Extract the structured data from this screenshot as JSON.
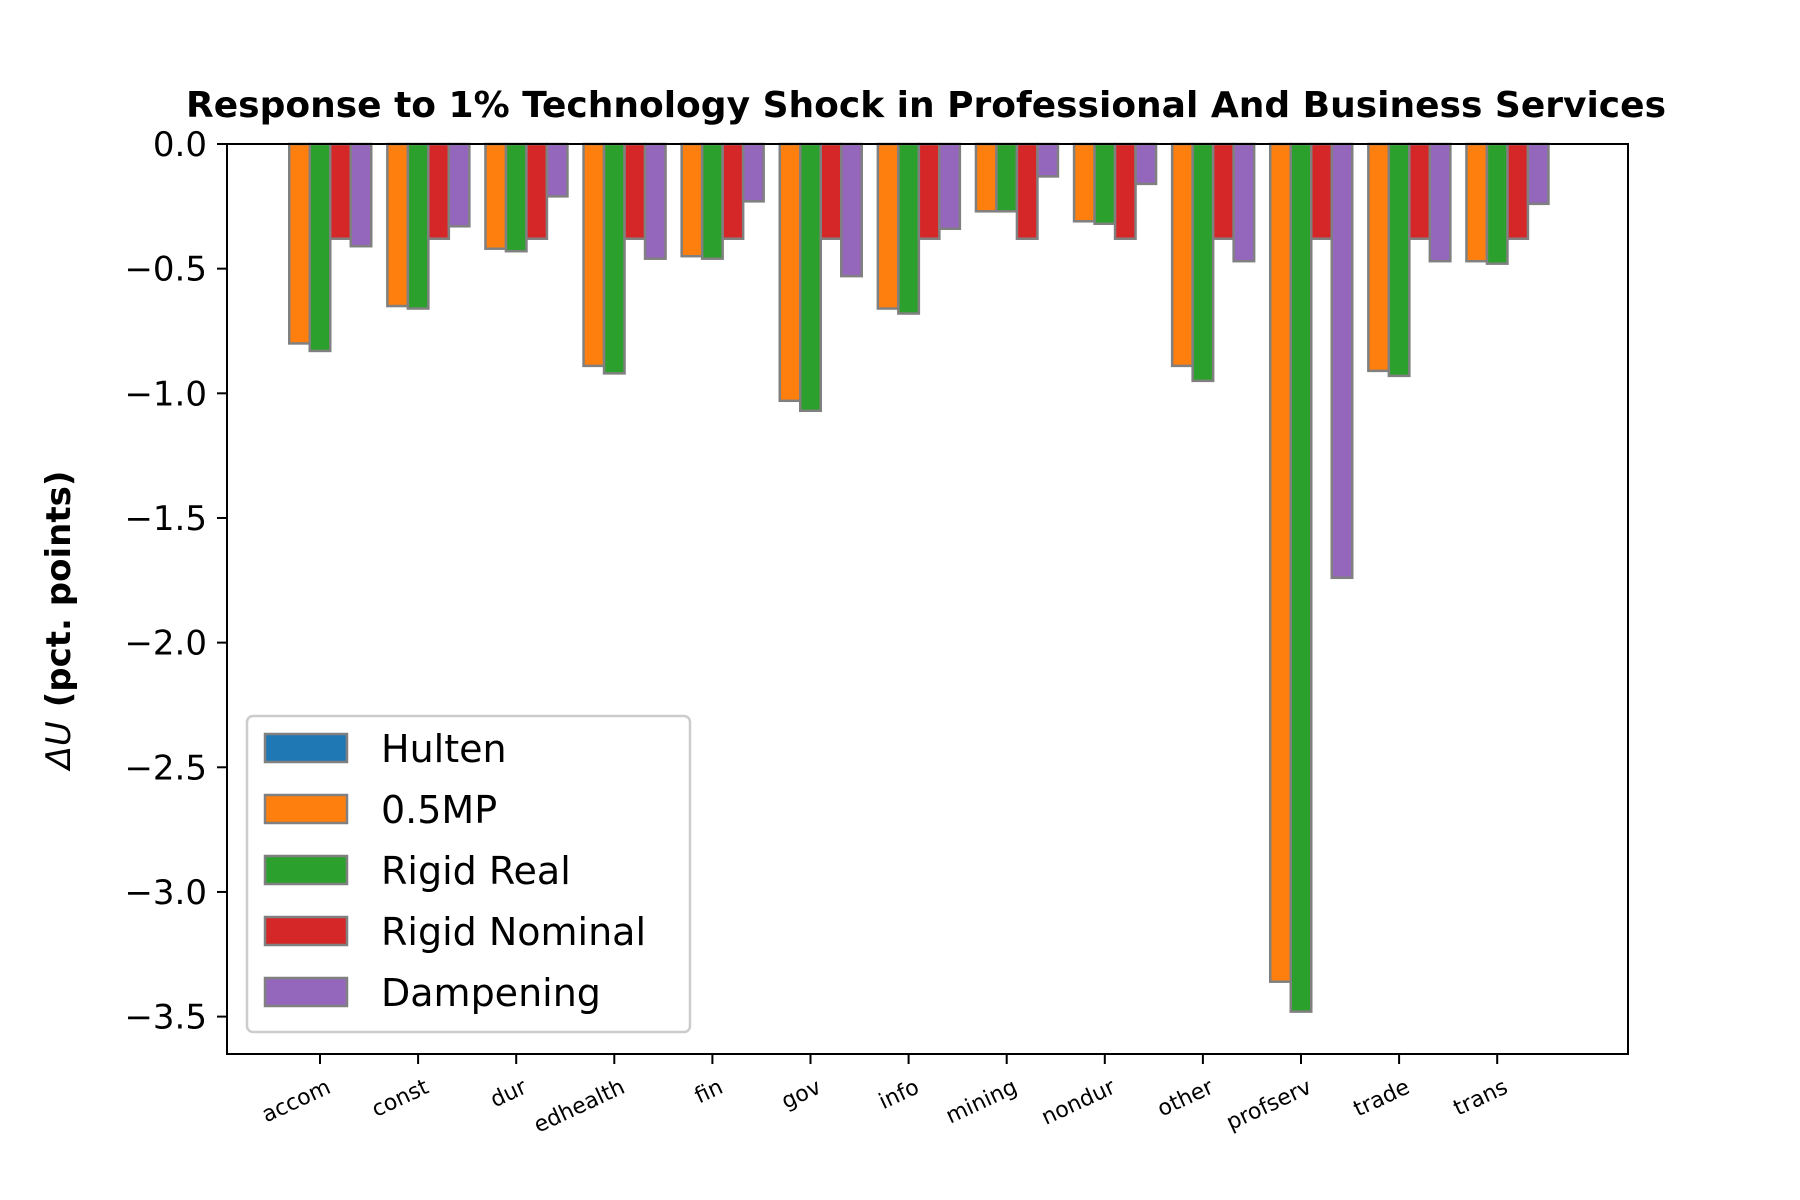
{
  "chart_data": {
    "type": "bar",
    "title": "Response to 1% Technology Shock in Professional And Business Services",
    "ylabel_symbol": "ΔU",
    "ylabel_text": "(pct. points)",
    "xlabel": "",
    "ylim": [
      -3.65,
      0.0
    ],
    "yticks": [
      0.0,
      -0.5,
      -1.0,
      -1.5,
      -2.0,
      -2.5,
      -3.0,
      -3.5
    ],
    "ytick_labels": [
      "0.0",
      "−0.5",
      "−1.0",
      "−1.5",
      "−2.0",
      "−2.5",
      "−3.0",
      "−3.5"
    ],
    "categories": [
      "accom",
      "const",
      "dur",
      "edhealth",
      "fin",
      "gov",
      "info",
      "mining",
      "nondur",
      "other",
      "profserv",
      "trade",
      "trans"
    ],
    "series": [
      {
        "name": "Hulten",
        "color": "#1f77b4",
        "values": [
          0,
          0,
          0,
          0,
          0,
          0,
          0,
          0,
          0,
          0,
          0,
          0,
          0
        ]
      },
      {
        "name": "0.5MP",
        "color": "#ff7f0e",
        "values": [
          -0.8,
          -0.65,
          -0.42,
          -0.89,
          -0.45,
          -1.03,
          -0.66,
          -0.27,
          -0.31,
          -0.89,
          -3.36,
          -0.91,
          -0.47
        ]
      },
      {
        "name": "Rigid Real",
        "color": "#2ca02c",
        "values": [
          -0.83,
          -0.66,
          -0.43,
          -0.92,
          -0.46,
          -1.07,
          -0.68,
          -0.27,
          -0.32,
          -0.95,
          -3.48,
          -0.93,
          -0.48
        ]
      },
      {
        "name": "Rigid Nominal",
        "color": "#d62728",
        "values": [
          -0.38,
          -0.38,
          -0.38,
          -0.38,
          -0.38,
          -0.38,
          -0.38,
          -0.38,
          -0.38,
          -0.38,
          -0.38,
          -0.38,
          -0.38
        ]
      },
      {
        "name": "Dampening",
        "color": "#9467bd",
        "values": [
          -0.41,
          -0.33,
          -0.21,
          -0.46,
          -0.23,
          -0.53,
          -0.34,
          -0.13,
          -0.16,
          -0.47,
          -1.74,
          -0.47,
          -0.24
        ]
      }
    ],
    "bar_edge_color": "#808080",
    "grid": false,
    "legend_position": "lower-left"
  }
}
